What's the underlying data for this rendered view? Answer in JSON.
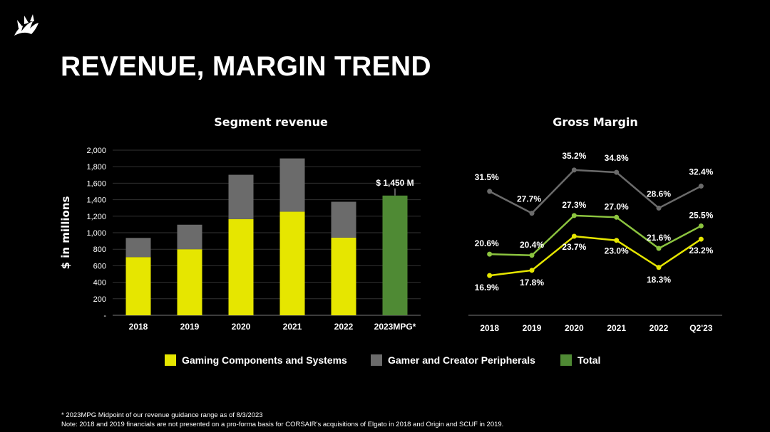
{
  "title": "REVENUE, MARGIN TREND",
  "colors": {
    "gaming": "#E6E600",
    "peripherals": "#6B6B6B",
    "total": "#4F8A34",
    "gm_total": "#6B6B6B",
    "gm_peripherals": "#8CC43F",
    "gm_gaming": "#E6E600"
  },
  "legend": [
    {
      "label": "Gaming Components and Systems",
      "color": "#E6E600"
    },
    {
      "label": "Gamer and Creator Peripherals",
      "color": "#6B6B6B"
    },
    {
      "label": "Total",
      "color": "#4F8A34"
    }
  ],
  "footnotes": [
    "* 2023MPG Midpoint of our revenue guidance range as of 8/3/2023",
    "Note: 2018 and 2019 financials are not presented on a pro-forma basis for CORSAIR’s acquisitions of Elgato in 2018 and Origin and SCUF in 2019."
  ],
  "chart_data": [
    {
      "type": "bar",
      "title": "Segment revenue",
      "ylabel": "$ in millions",
      "xlabel": "",
      "ylim": [
        0,
        2000
      ],
      "yticks": [
        0,
        200,
        400,
        600,
        800,
        1000,
        1200,
        1400,
        1600,
        1800,
        2000
      ],
      "ytick_labels": [
        "-",
        "200",
        "400",
        "600",
        "800",
        "1,000",
        "1,200",
        "1,400",
        "1,600",
        "1,800",
        "2,000"
      ],
      "categories": [
        "2018",
        "2019",
        "2020",
        "2021",
        "2022",
        "2023MPG*"
      ],
      "stacked": true,
      "series": [
        {
          "name": "Gaming Components and Systems",
          "values": [
            705,
            800,
            1165,
            1255,
            940,
            null
          ]
        },
        {
          "name": "Gamer and Creator Peripherals",
          "values": [
            232,
            297,
            537,
            645,
            435,
            null
          ]
        },
        {
          "name": "Total",
          "values": [
            null,
            null,
            null,
            null,
            null,
            1450
          ]
        }
      ],
      "annotation": "$ 1,450 M"
    },
    {
      "type": "line",
      "title": "Gross Margin",
      "categories": [
        "2018",
        "2019",
        "2020",
        "2021",
        "2022",
        "Q2'23"
      ],
      "ylim": [
        10,
        40
      ],
      "series": [
        {
          "name": "Total",
          "values": [
            20.6,
            20.4,
            27.3,
            27.0,
            21.6,
            25.5
          ],
          "labels": [
            "20.6%",
            "20.4%",
            "27.3%",
            "27.0%",
            "21.6%",
            "25.5%"
          ]
        },
        {
          "name": "Gaming Components and Systems",
          "values": [
            16.9,
            17.8,
            23.7,
            23.0,
            18.3,
            23.2
          ],
          "labels": [
            "16.9%",
            "17.8%",
            "23.7%",
            "23.0%",
            "18.3%",
            "23.2%"
          ]
        },
        {
          "name": "Gamer and Creator Peripherals",
          "values": [
            31.5,
            27.7,
            35.2,
            34.8,
            28.6,
            32.4
          ],
          "labels": [
            "31.5%",
            "27.7%",
            "35.2%",
            "34.8%",
            "28.6%",
            "32.4%"
          ]
        }
      ]
    }
  ]
}
